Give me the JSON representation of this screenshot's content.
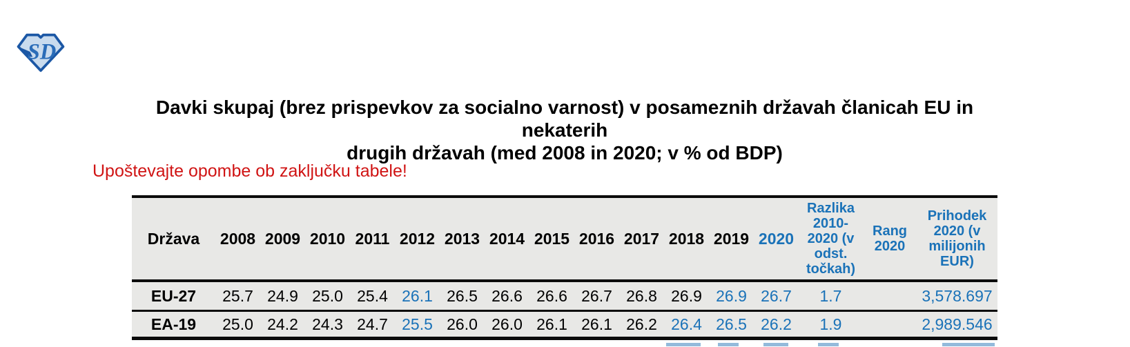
{
  "colors": {
    "accent_blue": "#1a72b8",
    "note_red": "#d01414",
    "row_bg": "#e8e8e6",
    "border_black": "#0b0b0b",
    "logo_outline_blue": "#1b57a5",
    "logo_fill_blue": "#c9dbee"
  },
  "logo": {
    "letters": "SD"
  },
  "title": {
    "line1": "Davki skupaj (brez prispevkov za socialno varnost) v posameznih državah članicah EU in nekaterih",
    "line2": "drugih državah (med 2008 in 2020; v % od BDP)"
  },
  "note": "Upoštevajte opombe ob zaključku tabele!",
  "table": {
    "columns": [
      {
        "id": "drzava",
        "kind": "country",
        "label": "Država",
        "blue": false
      },
      {
        "id": "2008",
        "kind": "year",
        "label": "2008",
        "blue": false
      },
      {
        "id": "2009",
        "kind": "year",
        "label": "2009",
        "blue": false
      },
      {
        "id": "2010",
        "kind": "year",
        "label": "2010",
        "blue": false
      },
      {
        "id": "2011",
        "kind": "year",
        "label": "2011",
        "blue": false
      },
      {
        "id": "2012",
        "kind": "year",
        "label": "2012",
        "blue": false
      },
      {
        "id": "2013",
        "kind": "year",
        "label": "2013",
        "blue": false
      },
      {
        "id": "2014",
        "kind": "year",
        "label": "2014",
        "blue": false
      },
      {
        "id": "2015",
        "kind": "year",
        "label": "2015",
        "blue": false
      },
      {
        "id": "2016",
        "kind": "year",
        "label": "2016",
        "blue": false
      },
      {
        "id": "2017",
        "kind": "year",
        "label": "2017",
        "blue": false
      },
      {
        "id": "2018",
        "kind": "year",
        "label": "2018",
        "blue": false
      },
      {
        "id": "2019",
        "kind": "year",
        "label": "2019",
        "blue": false
      },
      {
        "id": "2020",
        "kind": "year",
        "label": "2020",
        "blue": true
      },
      {
        "id": "razlika",
        "kind": "diff",
        "label": "Razlika 2010-2020 (v odst. točkah)",
        "blue": true
      },
      {
        "id": "rang",
        "kind": "rank",
        "label": "Rang 2020",
        "blue": true
      },
      {
        "id": "prihodek",
        "kind": "revenue",
        "label": "Prihodek 2020 (v milijonih EUR)",
        "blue": true
      }
    ],
    "rows": [
      {
        "country": "EU-27",
        "values": [
          {
            "v": "25.7",
            "blue": false
          },
          {
            "v": "24.9",
            "blue": false
          },
          {
            "v": "25.0",
            "blue": false
          },
          {
            "v": "25.4",
            "blue": false
          },
          {
            "v": "26.1",
            "blue": true
          },
          {
            "v": "26.5",
            "blue": false
          },
          {
            "v": "26.6",
            "blue": false
          },
          {
            "v": "26.6",
            "blue": false
          },
          {
            "v": "26.7",
            "blue": false
          },
          {
            "v": "26.8",
            "blue": false
          },
          {
            "v": "26.9",
            "blue": false
          },
          {
            "v": "26.9",
            "blue": true
          },
          {
            "v": "26.7",
            "blue": true
          },
          {
            "v": "1.7",
            "blue": true
          },
          {
            "v": "",
            "blue": false
          },
          {
            "v": "3,578.697",
            "blue": true
          }
        ]
      },
      {
        "country": "EA-19",
        "values": [
          {
            "v": "25.0",
            "blue": false
          },
          {
            "v": "24.2",
            "blue": false
          },
          {
            "v": "24.3",
            "blue": false
          },
          {
            "v": "24.7",
            "blue": false
          },
          {
            "v": "25.5",
            "blue": true
          },
          {
            "v": "26.0",
            "blue": false
          },
          {
            "v": "26.0",
            "blue": false
          },
          {
            "v": "26.1",
            "blue": false
          },
          {
            "v": "26.1",
            "blue": false
          },
          {
            "v": "26.2",
            "blue": false
          },
          {
            "v": "26.4",
            "blue": true
          },
          {
            "v": "26.5",
            "blue": true
          },
          {
            "v": "26.2",
            "blue": true
          },
          {
            "v": "1.9",
            "blue": true
          },
          {
            "v": "",
            "blue": false
          },
          {
            "v": "2,989.546",
            "blue": true
          }
        ]
      }
    ]
  }
}
